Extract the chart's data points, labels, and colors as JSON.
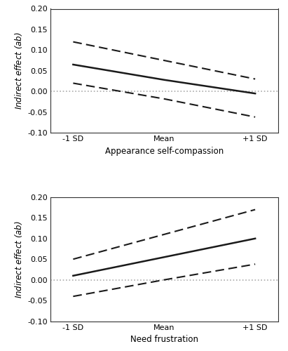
{
  "top": {
    "xlabel": "Appearance self-compassion",
    "xtick_labels": [
      "-1 SD",
      "Mean",
      "+1 SD"
    ],
    "x": [
      0,
      1,
      2
    ],
    "solid": [
      0.065,
      0.028,
      -0.005
    ],
    "upper_ci": [
      0.12,
      0.075,
      0.03
    ],
    "lower_ci": [
      0.02,
      -0.018,
      -0.062
    ],
    "ylim": [
      -0.1,
      0.2
    ],
    "yticks": [
      -0.1,
      -0.05,
      0.0,
      0.05,
      0.1,
      0.15,
      0.2
    ]
  },
  "bottom": {
    "xlabel": "Need frustration",
    "xtick_labels": [
      "-1 SD",
      "Mean",
      "+1 SD"
    ],
    "x": [
      0,
      1,
      2
    ],
    "solid": [
      0.01,
      0.055,
      0.1
    ],
    "upper_ci": [
      0.05,
      0.11,
      0.17
    ],
    "lower_ci": [
      -0.04,
      0.0,
      0.038
    ],
    "ylim": [
      -0.1,
      0.2
    ],
    "yticks": [
      -0.1,
      -0.05,
      0.0,
      0.05,
      0.1,
      0.15,
      0.2
    ]
  },
  "line_color": "#1a1a1a",
  "zero_line_color": "#aaaaaa",
  "background_color": "#ffffff",
  "label_fontsize": 8.5,
  "tick_fontsize": 8,
  "ylabel_fontsize": 8.5
}
